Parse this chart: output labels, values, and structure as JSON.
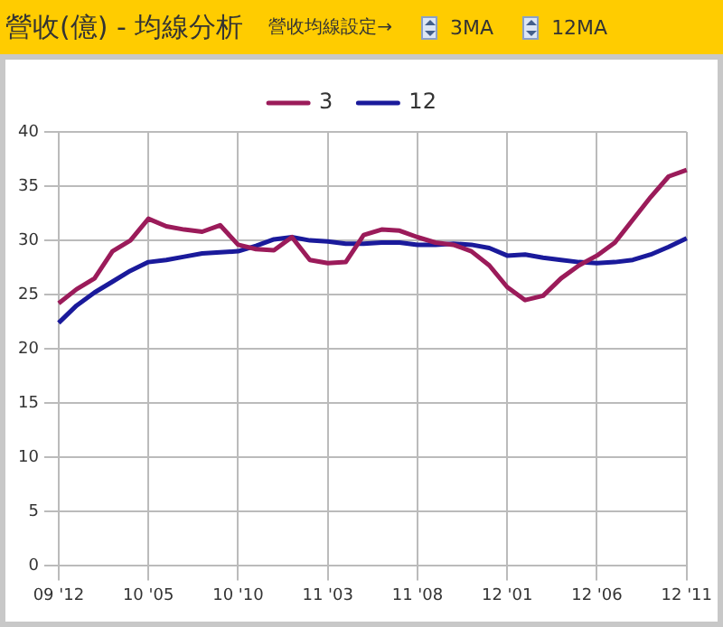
{
  "chart_data": {
    "type": "line",
    "title": "營收(億) - 均線分析",
    "annotations": [
      "營收均線設定→",
      "3MA",
      "12MA"
    ],
    "categories": [
      "09 '12",
      null,
      null,
      null,
      null,
      "10 '05",
      null,
      null,
      null,
      null,
      "10 '10",
      null,
      null,
      null,
      null,
      "11 '03",
      null,
      null,
      null,
      null,
      "11 '08",
      null,
      null,
      null,
      null,
      "12 '01",
      null,
      null,
      null,
      null,
      "12 '06",
      null,
      null,
      null,
      null,
      "12 '11"
    ],
    "series": [
      {
        "name": "3",
        "color": "#9b1b5a",
        "values": [
          24.2,
          25.5,
          26.5,
          29,
          30,
          32,
          31.3,
          31,
          30.8,
          31.4,
          29.6,
          29.2,
          29.1,
          30.3,
          28.2,
          27.9,
          28,
          30.5,
          31,
          30.9,
          30.3,
          29.8,
          29.6,
          29,
          27.7,
          25.7,
          24.5,
          24.9,
          26.5,
          27.7,
          28.6,
          29.8,
          31.9,
          34,
          35.9,
          36.5
        ]
      },
      {
        "name": "12",
        "color": "#1a1a9b",
        "values": [
          22.4,
          24,
          25.2,
          26.2,
          27.2,
          28,
          28.2,
          28.5,
          28.8,
          28.9,
          29,
          29.5,
          30.1,
          30.3,
          30,
          29.9,
          29.7,
          29.7,
          29.8,
          29.8,
          29.6,
          29.6,
          29.7,
          29.6,
          29.3,
          28.6,
          28.7,
          28.4,
          28.2,
          28,
          27.9,
          28,
          28.2,
          28.7,
          29.4,
          30.2
        ]
      }
    ],
    "ylim": [
      0,
      40
    ],
    "yticks": [
      0,
      5,
      10,
      15,
      20,
      25,
      30,
      35,
      40
    ],
    "grid": true,
    "legend": "top",
    "marker": "none",
    "line_style": "solid"
  }
}
